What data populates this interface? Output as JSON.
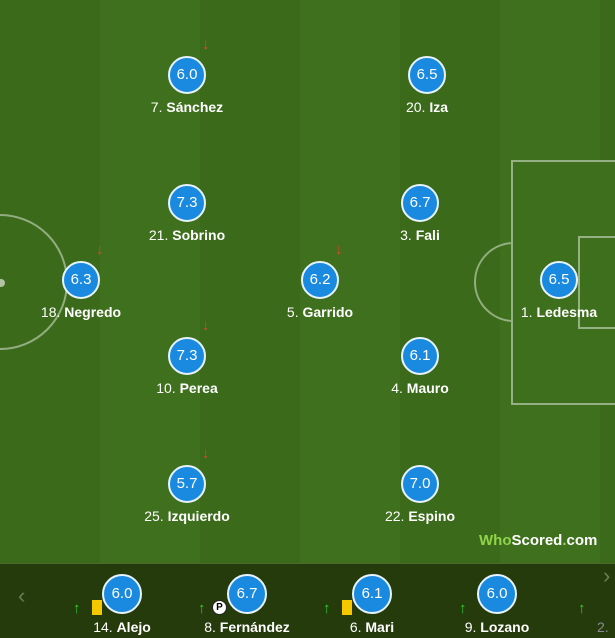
{
  "starters": [
    {
      "num": "7.",
      "name": "Sánchez",
      "rating": "6.0",
      "subbed_off": true
    },
    {
      "num": "20.",
      "name": "Iza",
      "rating": "6.5",
      "subbed_off": false
    },
    {
      "num": "21.",
      "name": "Sobrino",
      "rating": "7.3",
      "subbed_off": false
    },
    {
      "num": "3.",
      "name": "Fali",
      "rating": "6.7",
      "subbed_off": false
    },
    {
      "num": "18.",
      "name": "Negredo",
      "rating": "6.3",
      "subbed_off": true
    },
    {
      "num": "5.",
      "name": "Garrido",
      "rating": "6.2",
      "subbed_off": true
    },
    {
      "num": "1.",
      "name": "Ledesma",
      "rating": "6.5",
      "subbed_off": false
    },
    {
      "num": "10.",
      "name": "Perea",
      "rating": "7.3",
      "subbed_off": true
    },
    {
      "num": "4.",
      "name": "Mauro",
      "rating": "6.1",
      "subbed_off": false
    },
    {
      "num": "25.",
      "name": "Izquierdo",
      "rating": "5.7",
      "subbed_off": true
    },
    {
      "num": "22.",
      "name": "Espino",
      "rating": "7.0",
      "subbed_off": false
    }
  ],
  "bench": [
    {
      "num": "14.",
      "name": "Alejo",
      "rating": "6.0",
      "event": "yellow-card"
    },
    {
      "num": "8.",
      "name": "Fernández",
      "rating": "6.7",
      "event": "penalty"
    },
    {
      "num": "6.",
      "name": "Mari",
      "rating": "6.1",
      "event": "yellow-card"
    },
    {
      "num": "9.",
      "name": "Lozano",
      "rating": "6.0",
      "event": ""
    },
    {
      "num": "2.",
      "name": "",
      "rating": "",
      "event": ""
    }
  ],
  "icons": {
    "sub_off": "↓",
    "sub_on": "↑",
    "penalty": "P",
    "prev": "‹",
    "next": "›"
  },
  "logo": {
    "who": "Who",
    "scored": "Scored",
    "dot": ".",
    "com": "com"
  },
  "colors": {
    "rating": "#1a8ae0",
    "sub_off": "#e8412c",
    "sub_on": "#2bd12b",
    "yellow": "#f5c800"
  }
}
